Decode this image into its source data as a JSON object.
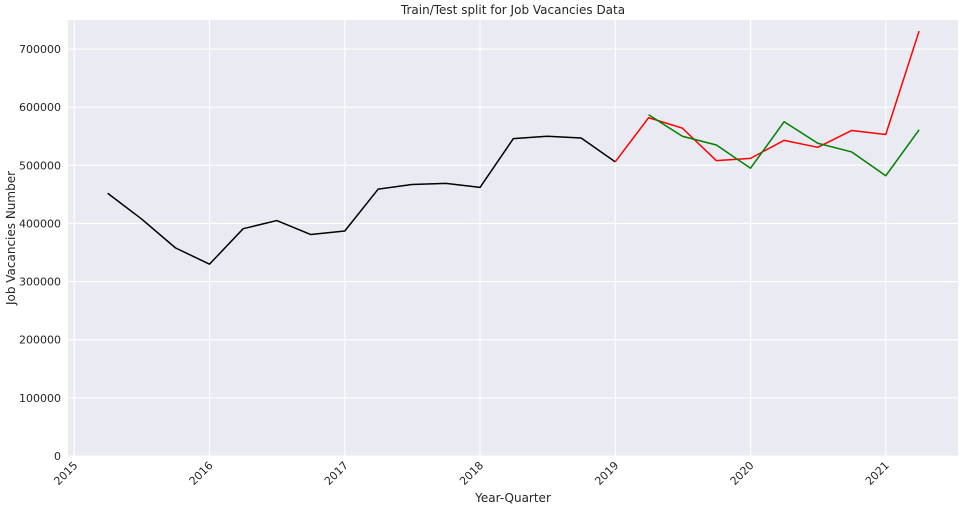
{
  "chart_data": {
    "type": "line",
    "title": "Train/Test split for Job Vacancies Data",
    "xlabel": "Year-Quarter",
    "ylabel": "Job Vacancies Number",
    "ylim": [
      0,
      750000
    ],
    "xlim": [
      "2014-12-15",
      "2021-07-15"
    ],
    "grid": true,
    "legend": "none",
    "x_ticks": [
      "2015",
      "2016",
      "2017",
      "2018",
      "2019",
      "2020",
      "2021"
    ],
    "y_ticks": [
      "0",
      "100000",
      "200000",
      "300000",
      "400000",
      "500000",
      "600000",
      "700000"
    ],
    "background": "#eaeaf2",
    "grid_color": "#ffffff",
    "series": [
      {
        "color": "#000000",
        "x": [
          "2015-04-01",
          "2015-07-01",
          "2015-10-01",
          "2016-01-01",
          "2016-04-01",
          "2016-07-01",
          "2016-10-01",
          "2017-01-01",
          "2017-04-01",
          "2017-07-01",
          "2017-10-01",
          "2018-01-01",
          "2018-04-01",
          "2018-07-01",
          "2018-10-01",
          "2019-01-01"
        ],
        "values": [
          452000,
          408000,
          358000,
          330000,
          391000,
          405000,
          381000,
          387000,
          459000,
          467000,
          469000,
          462000,
          546000,
          550000,
          547000,
          506000
        ]
      },
      {
        "color": "#ff0000",
        "x": [
          "2019-01-01",
          "2019-04-01",
          "2019-07-01",
          "2019-10-01",
          "2020-01-01",
          "2020-04-01",
          "2020-07-01",
          "2020-10-01",
          "2021-01-01",
          "2021-04-01"
        ],
        "values": [
          506000,
          582000,
          564000,
          508000,
          512000,
          543000,
          531000,
          560000,
          553000,
          731000
        ]
      },
      {
        "color": "#008000",
        "x": [
          "2019-04-01",
          "2019-07-01",
          "2019-10-01",
          "2020-01-01",
          "2020-04-01",
          "2020-07-01",
          "2020-10-01",
          "2021-01-01",
          "2021-04-01"
        ],
        "values": [
          587000,
          550000,
          535000,
          495000,
          575000,
          538000,
          523000,
          482000,
          561000
        ]
      }
    ]
  }
}
